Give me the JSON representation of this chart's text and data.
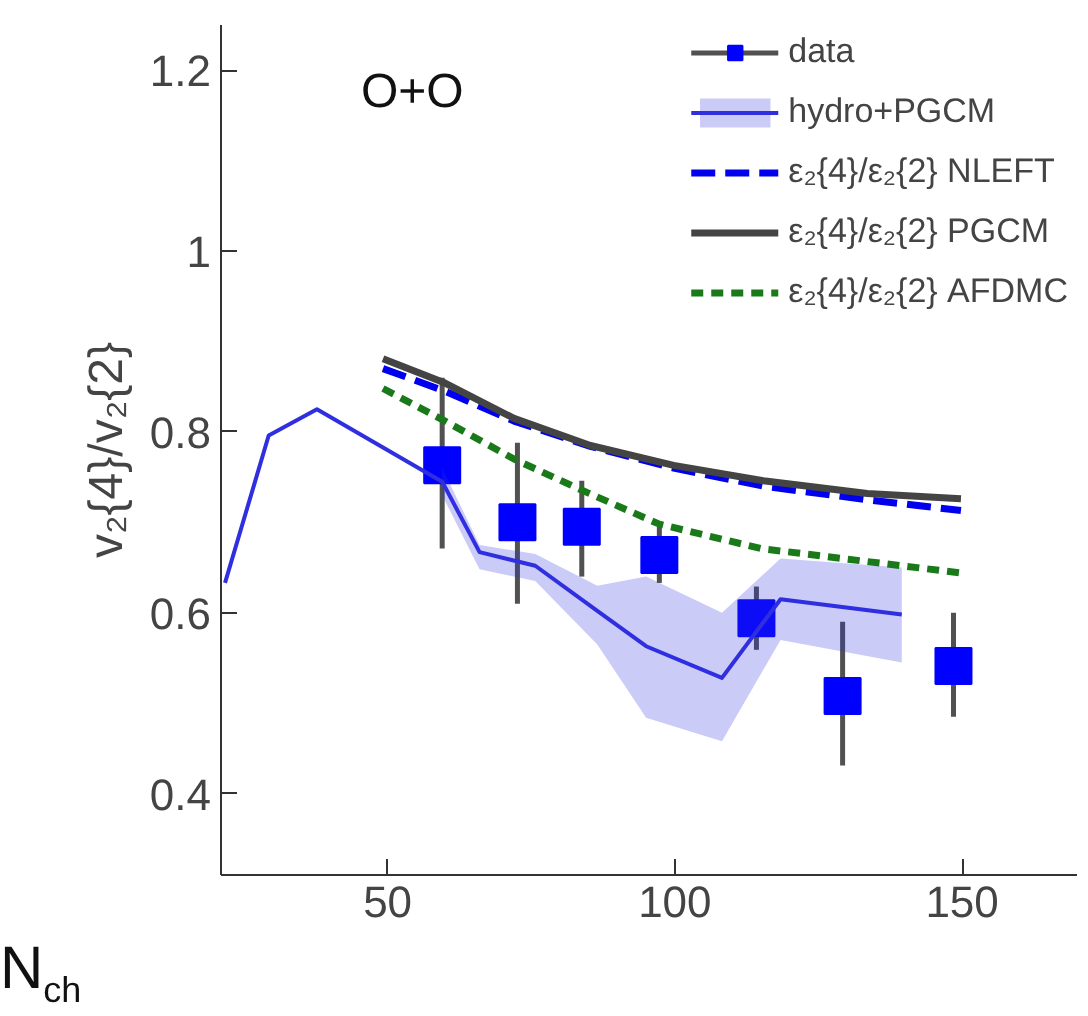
{
  "chart_data": {
    "type": "line",
    "xlabel": "N$_{ch}$",
    "ylabel": "v₂{4}/v₂{2}",
    "annotations": [
      "O+O"
    ],
    "xlim": [
      21,
      170
    ],
    "ylim": [
      0.31,
      1.25
    ],
    "xticks": [
      50,
      100,
      150
    ],
    "yticks": [
      0.4,
      0.6,
      0.8,
      1,
      1.2
    ],
    "grid": false,
    "legend": "top right",
    "line_style": "solid",
    "series": [
      {
        "name": "data",
        "type": "scatter",
        "marker": "square",
        "color": "#0000ff",
        "x": [
          59.5,
          72.6,
          83.8,
          97.3,
          114.2,
          129.2,
          148.5
        ],
        "values": [
          0.763,
          0.7,
          0.695,
          0.664,
          0.594,
          0.508,
          0.541
        ],
        "errors": [
          [
            0.671,
            0.86
          ],
          [
            0.61,
            0.788
          ],
          [
            0.64,
            0.746
          ],
          [
            0.633,
            0.695
          ],
          [
            0.559,
            0.629
          ],
          [
            0.431,
            0.59
          ],
          [
            0.485,
            0.6
          ]
        ]
      },
      {
        "name": "hydro+PGCM",
        "color": "#2f2fe0",
        "x": [
          21.7,
          29.3,
          37.7,
          59.5,
          66,
          75.7,
          86.5,
          95,
          108.2,
          118.4,
          139.5
        ],
        "values": [
          0.633,
          0.796,
          0.825,
          0.745,
          0.667,
          0.652,
          0.602,
          0.563,
          0.528,
          0.615,
          0.598
        ],
        "lower": [
          null,
          null,
          null,
          0.73,
          0.648,
          0.635,
          0.565,
          0.484,
          0.458,
          0.57,
          0.545
        ],
        "upper": [
          null,
          null,
          null,
          0.76,
          0.675,
          0.665,
          0.63,
          0.64,
          0.6,
          0.66,
          0.65
        ]
      },
      {
        "name": "ε₂{4}/ε₂{2} NLEFT",
        "line_style": "dashed",
        "color": "#0000ee",
        "x": [
          49.2,
          60,
          72,
          85.3,
          99.8,
          115.4,
          133.5,
          149.8
        ],
        "values": [
          0.87,
          0.845,
          0.812,
          0.784,
          0.76,
          0.74,
          0.725,
          0.713
        ]
      },
      {
        "name": "ε₂{4}/ε₂{2} PGCM",
        "color": "#444444",
        "x": [
          49.2,
          60,
          72,
          85.3,
          99.8,
          115.4,
          133.5,
          149.8
        ],
        "values": [
          0.881,
          0.854,
          0.815,
          0.785,
          0.763,
          0.746,
          0.732,
          0.726
        ]
      },
      {
        "name": "ε₂{4}/ε₂{2} AFDMC",
        "line_style": "dotted",
        "color": "#1a7a1a",
        "x": [
          49.2,
          60,
          72,
          84,
          97.3,
          115,
          133,
          149.8
        ],
        "values": [
          0.848,
          0.812,
          0.77,
          0.735,
          0.698,
          0.671,
          0.657,
          0.644
        ]
      }
    ]
  }
}
